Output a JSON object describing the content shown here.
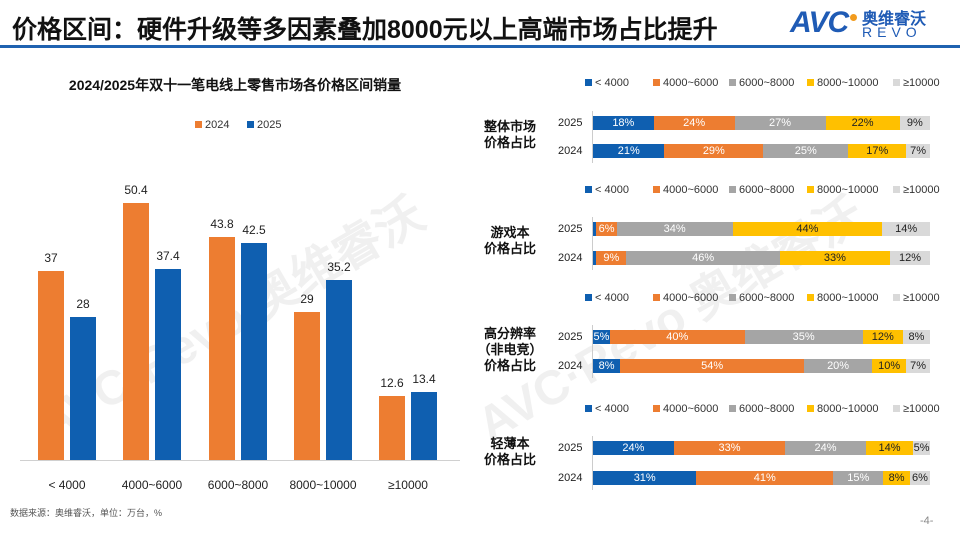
{
  "header": {
    "title": "价格区间：硬件升级等多因素叠加8000元以上高端市场占比提升",
    "logo_text": "AVC 奥维睿沃 REVO"
  },
  "watermark": "AVC·Revo 奥维睿沃",
  "colors": {
    "blue": "#0f5fb0",
    "orange": "#ed7d31",
    "gray": "#a5a5a5",
    "yellow": "#ffc000",
    "lightgray": "#d9d9d9"
  },
  "chart_data": [
    {
      "type": "bar",
      "title": "2024/2025年双十一笔电线上零售市场各价格区间销量",
      "categories": [
        "< 4000",
        "4000~6000",
        "6000~8000",
        "8000~10000",
        "≥10000"
      ],
      "series": [
        {
          "name": "2024",
          "color": "#ed7d31",
          "values": [
            37.0,
            50.4,
            43.8,
            29.0,
            12.6
          ]
        },
        {
          "name": "2025",
          "color": "#0f5fb0",
          "values": [
            28.0,
            37.4,
            42.5,
            35.2,
            13.4
          ]
        }
      ],
      "legend": "top-center",
      "ylim": [
        0,
        55
      ]
    },
    {
      "type": "bar",
      "stacked": true,
      "orientation": "horizontal",
      "legend_labels": [
        "< 4000",
        "4000~6000",
        "6000~8000",
        "8000~10000",
        "≥10000"
      ],
      "groups": [
        {
          "label": "整体市场\n价格占比",
          "rows": [
            {
              "year": "2025",
              "values": [
                18,
                24,
                27,
                22,
                9
              ]
            },
            {
              "year": "2024",
              "values": [
                21,
                29,
                25,
                17,
                7
              ]
            }
          ]
        },
        {
          "label": "游戏本\n价格占比",
          "rows": [
            {
              "year": "2025",
              "values": [
                1,
                6,
                34,
                44,
                14
              ],
              "hide_first": true
            },
            {
              "year": "2024",
              "values": [
                1,
                9,
                46,
                33,
                12
              ],
              "hide_first": true
            }
          ]
        },
        {
          "label": "高分辨率\n（非电竞）\n价格占比",
          "rows": [
            {
              "year": "2025",
              "values": [
                5,
                40,
                35,
                12,
                8
              ]
            },
            {
              "year": "2024",
              "values": [
                8,
                54,
                20,
                10,
                7
              ]
            }
          ]
        },
        {
          "label": "轻薄本\n价格占比",
          "rows": [
            {
              "year": "2025",
              "values": [
                24,
                33,
                24,
                14,
                5
              ]
            },
            {
              "year": "2024",
              "values": [
                31,
                41,
                15,
                8,
                6
              ]
            }
          ]
        }
      ]
    }
  ],
  "footer": {
    "source": "数据来源：奥维睿沃，单位：万台，%",
    "page": "-4-"
  }
}
